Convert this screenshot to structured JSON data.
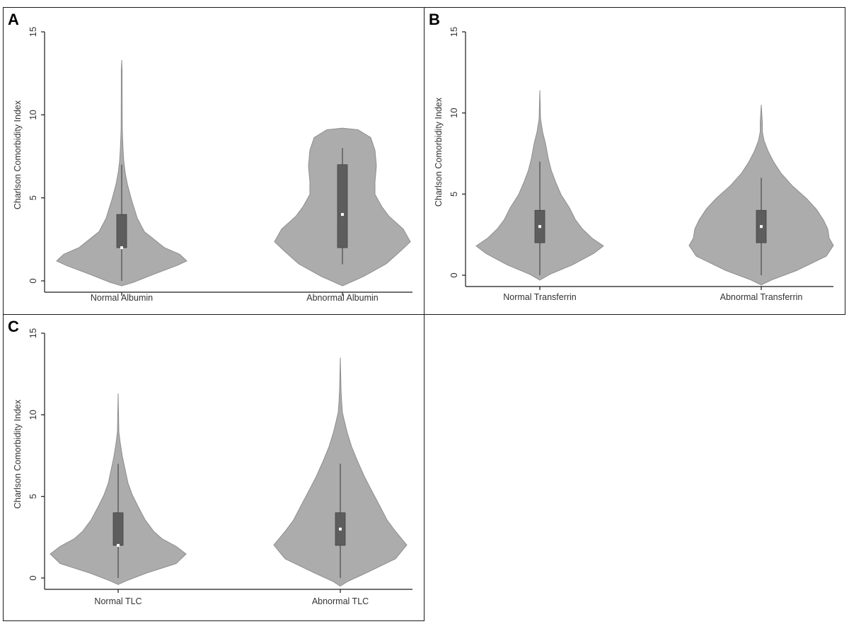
{
  "chart_data": [
    {
      "panel": "A",
      "type": "violin",
      "ylabel": "Charlson Comorbidity Index",
      "ylim": [
        0,
        15
      ],
      "yticks": [
        "0",
        "5",
        "10",
        "15"
      ],
      "categories": [
        "Normal Albumin",
        "Abnormal Albumin"
      ],
      "groups": [
        {
          "name": "Normal Albumin",
          "min": 0,
          "q1": 2,
          "median": 2,
          "q3": 4,
          "max": 7,
          "range_min": -0.3,
          "range_max": 13.3
        },
        {
          "name": "Abnormal Albumin",
          "min": 1,
          "q1": 2,
          "median": 4,
          "q3": 7,
          "max": 8,
          "range_min": -0.3,
          "range_max": 9.2
        }
      ]
    },
    {
      "panel": "B",
      "type": "violin",
      "ylabel": "Charlson Comorbidity Index",
      "ylim": [
        0,
        15
      ],
      "yticks": [
        "0",
        "5",
        "10",
        "15"
      ],
      "categories": [
        "Normal Transferrin",
        "Abnormal Transferrin"
      ],
      "groups": [
        {
          "name": "Normal Transferrin",
          "min": 0,
          "q1": 2,
          "median": 3,
          "q3": 4,
          "max": 7,
          "range_min": -0.3,
          "range_max": 11.4
        },
        {
          "name": "Abnormal Transferrin",
          "min": 0,
          "q1": 2,
          "median": 3,
          "q3": 4,
          "max": 6,
          "range_min": -0.6,
          "range_max": 10.5
        }
      ]
    },
    {
      "panel": "C",
      "type": "violin",
      "ylabel": "Charlson Comorbidity Index",
      "ylim": [
        0,
        15
      ],
      "yticks": [
        "0",
        "5",
        "10",
        "15"
      ],
      "categories": [
        "Normal TLC",
        "Abnormal TLC"
      ],
      "groups": [
        {
          "name": "Normal TLC",
          "min": 0,
          "q1": 2,
          "median": 2,
          "q3": 4,
          "max": 7,
          "range_min": -0.4,
          "range_max": 11.3
        },
        {
          "name": "Abnormal TLC",
          "min": 0,
          "q1": 2,
          "median": 3,
          "q3": 4,
          "max": 7,
          "range_min": -0.5,
          "range_max": 13.5
        }
      ]
    }
  ],
  "panels": [
    {
      "label": "A"
    },
    {
      "label": "B"
    },
    {
      "label": "C"
    }
  ],
  "colors": {
    "violin_fill": "#acacac",
    "violin_edge": "#8e8e8e",
    "box_fill": "#5d5d5d",
    "whisker": "#5d5d5d",
    "median_dot": "#ffffff",
    "axis": "#1a1a1a"
  }
}
